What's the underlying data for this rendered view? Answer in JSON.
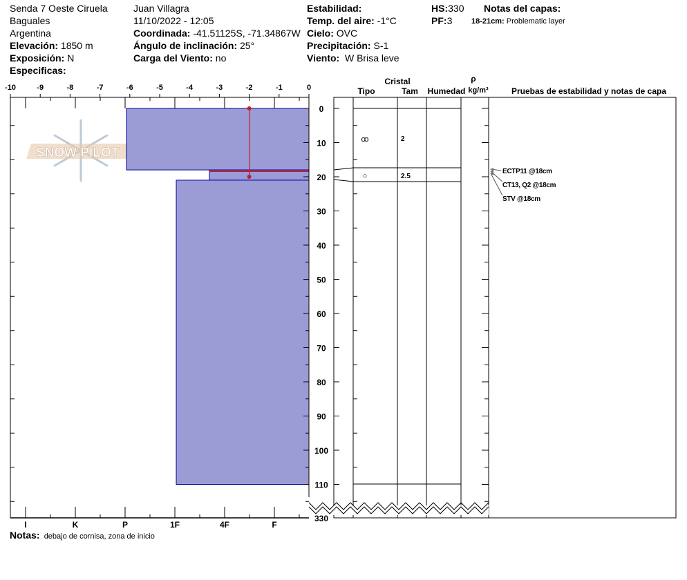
{
  "header": {
    "location": "Senda 7 Oeste Ciruela",
    "region": "Baguales",
    "country": "Argentina",
    "elevation_label": "Elevación:",
    "elevation": "1850 m",
    "aspect_label": "Exposición:",
    "aspect": "N",
    "specifics_label": "Especificas:",
    "observer": "Juan Villagra",
    "datetime": "11/10/2022 - 12:05",
    "coord_label": "Coordinada:",
    "coord": "-41.51125S, -71.34867W",
    "slope_label": "Ángulo de inclinación:",
    "slope": "25°",
    "windload_label": "Carga del Viento:",
    "windload": "no",
    "stability_label": "Estabilidad:",
    "airtemp_label": "Temp. del aire:",
    "airtemp": "-1°C",
    "sky_label": "Cielo:",
    "sky": "OVC",
    "precip_label": "Precipitación:",
    "precip": "S-1",
    "wind_label": "Viento:",
    "wind": "W Brisa leve",
    "hs_label": "HS:",
    "hs": "330",
    "pf_label": "PF:",
    "pf": "3",
    "layer_notes_label": "Notas del capas:",
    "layer_note_range": "18-21cm:",
    "layer_note_text": "Problematic layer"
  },
  "temp_axis": [
    "-10",
    "-9",
    "-8",
    "-7",
    "-6",
    "-5",
    "-4",
    "-3",
    "-2",
    "-1",
    "0"
  ],
  "hardness_axis": [
    "I",
    "K",
    "P",
    "1F",
    "4F",
    "F"
  ],
  "depth_labels": [
    "0",
    "10",
    "20",
    "30",
    "40",
    "50",
    "60",
    "70",
    "80",
    "90",
    "100",
    "110",
    "330"
  ],
  "table_headers": {
    "crystal": "Cristal",
    "type": "Tipo",
    "size": "Tam",
    "moisture": "Humedad",
    "rho": "ρ",
    "density_unit": "kg/m³",
    "tests": "Pruebas de estabilidad y notas de capa"
  },
  "layers": [
    {
      "top": 0,
      "bottom": 18,
      "hardness": "P",
      "type_symbol": "ꝏ",
      "size": "2"
    },
    {
      "top": 18,
      "bottom": 21,
      "hardness": "4F-",
      "type_symbol": "○",
      "size": "2.5"
    },
    {
      "top": 21,
      "bottom": 110,
      "hardness": "1F"
    }
  ],
  "temperature_profile": [
    {
      "depth": 0,
      "temp": -2
    },
    {
      "depth": 20,
      "temp": -2
    }
  ],
  "tests": [
    "ECTP11 @18cm",
    "CT13, Q2 @18cm",
    "STV @18cm"
  ],
  "notes_label": "Notas:",
  "notes": "debajo de cornisa, zona de inicio",
  "logo_text": "SNOW PILOT",
  "colors": {
    "layer_fill": "#9b9bd6",
    "layer_stroke": "#0000a0",
    "temp_line": "#c0202a"
  }
}
